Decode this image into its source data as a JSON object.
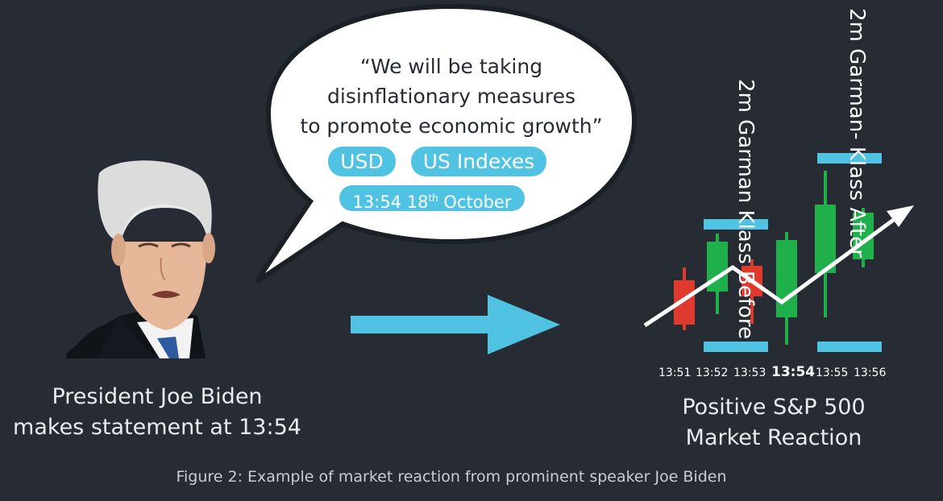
{
  "quote": {
    "line1": "“We will be taking",
    "line2": "disinflationary measures",
    "line3": "to promote economic growth”"
  },
  "tags": {
    "usd": "USD",
    "indexes": "US Indexes",
    "date_time": "13:54 18",
    "date_sup": "th",
    "date_month": " October"
  },
  "speaker_caption": {
    "line1": "President Joe Biden",
    "line2": "makes statement at 13:54"
  },
  "reaction_caption": {
    "line1": "Positive S&P 500",
    "line2": "Market Reaction"
  },
  "window_labels": {
    "before": "2m Garman Klass Before",
    "after": "2m Garman- Klass After"
  },
  "time_axis": [
    "13:51",
    "13:52",
    "13:53",
    "13:54",
    "13:55",
    "13:56"
  ],
  "figure_caption": "Figure 2: Example of market reaction from prominent speaker Joe Biden",
  "colors": {
    "background": "#262b34",
    "accent": "#4fc3e1",
    "bull": "#1fb04c",
    "bear": "#e03a2f"
  },
  "candles": [
    {
      "time": "13:51",
      "direction": "down"
    },
    {
      "time": "13:52",
      "direction": "up"
    },
    {
      "time": "13:53",
      "direction": "down"
    },
    {
      "time": "13:54",
      "direction": "up"
    },
    {
      "time": "13:55",
      "direction": "up"
    },
    {
      "time": "13:56",
      "direction": "up"
    }
  ]
}
